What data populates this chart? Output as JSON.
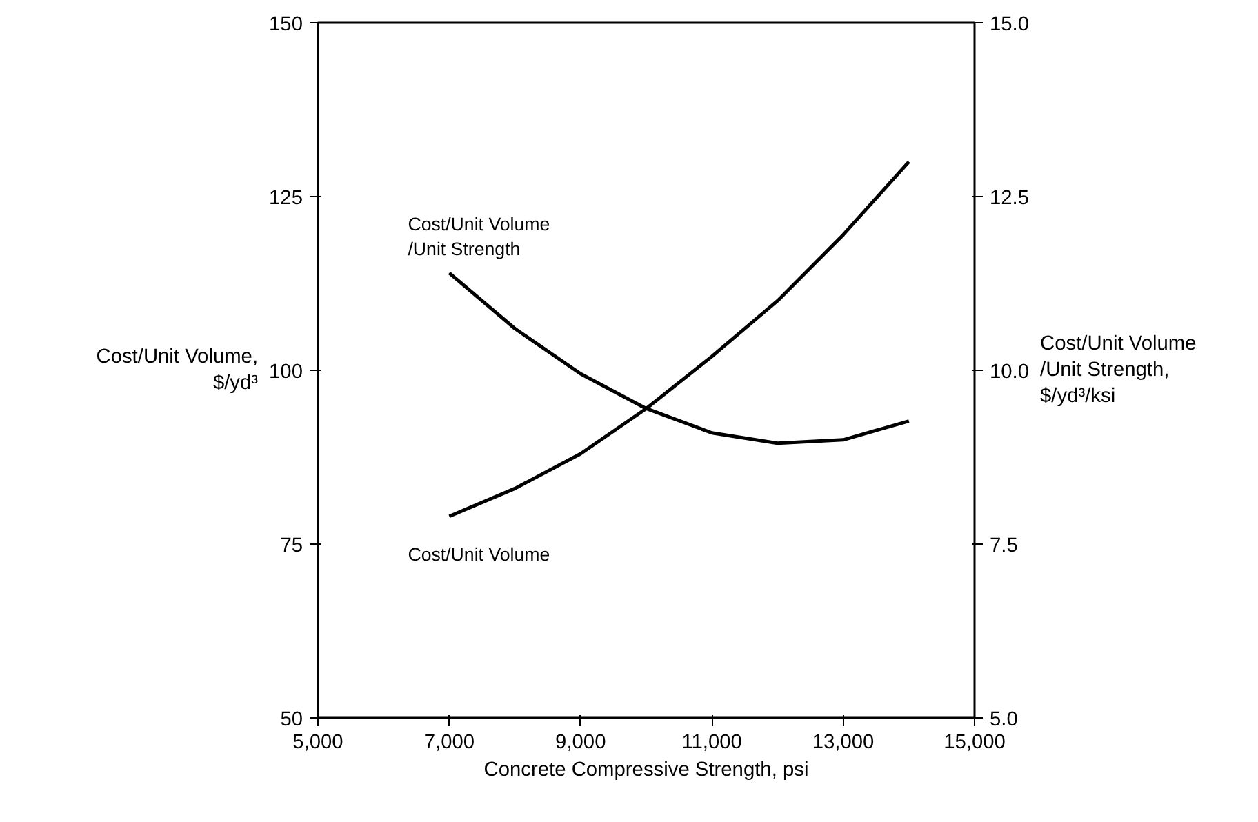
{
  "chart_data": {
    "type": "line",
    "xlabel": "Concrete Compressive Strength, psi",
    "ylabel": "Cost/Unit Volume,\n$/yd³",
    "y2label": "Cost/Unit Volume\n/Unit Strength,\n$/yd³/ksi",
    "xlim": [
      5000,
      15000
    ],
    "xticks": [
      {
        "value": 5000,
        "label": "5,000"
      },
      {
        "value": 7000,
        "label": "7,000"
      },
      {
        "value": 9000,
        "label": "9,000"
      },
      {
        "value": 11000,
        "label": "11,000"
      },
      {
        "value": 13000,
        "label": "13,000"
      },
      {
        "value": 15000,
        "label": "15,000"
      }
    ],
    "ylim": [
      50,
      150
    ],
    "yticks": [
      50,
      75,
      100,
      125,
      150
    ],
    "y2lim": [
      5,
      15
    ],
    "y2ticks": [
      {
        "value": 5,
        "label": "5.0"
      },
      {
        "value": 7.5,
        "label": "7.5"
      },
      {
        "value": 10,
        "label": "10.0"
      },
      {
        "value": 12.5,
        "label": "12.5"
      },
      {
        "value": 15,
        "label": "15.0"
      }
    ],
    "x": [
      7000,
      8000,
      9000,
      10000,
      11000,
      12000,
      13000,
      14000
    ],
    "grid": false,
    "legend": false,
    "marker": "none",
    "line_style": "solid",
    "series": [
      {
        "name": "Cost/Unit Volume",
        "color": "#000000",
        "values": [
          79,
          83,
          88,
          94.5,
          102,
          110,
          119.5,
          130
        ]
      },
      {
        "name": "Cost/Unit Volume\n/Unit Strength",
        "color": "#000000",
        "axis": "y2",
        "values": [
          11.4,
          10.6,
          9.95,
          9.45,
          9.1,
          8.95,
          9.0,
          9.27
        ]
      }
    ]
  }
}
